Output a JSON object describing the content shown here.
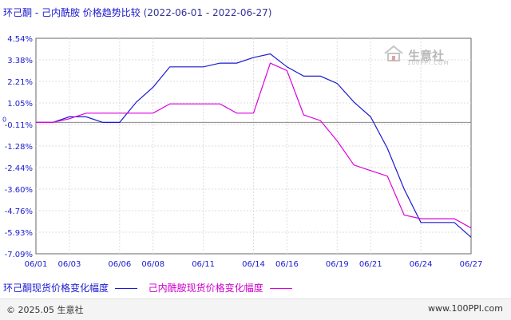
{
  "title": {
    "main": "环己酮 - 己内酰胺 价格趋势比较",
    "date_range": "(2022-06-01 - 2022-06-27)"
  },
  "watermark": {
    "brand": "生意社",
    "sub": "100PPI.COM"
  },
  "footer": {
    "copyright": "© 2025.05 生意社",
    "url": "www.100PPI.com"
  },
  "colors": {
    "series1": "#1a1ad0",
    "series2": "#dd00dd",
    "zero_line": "#888888",
    "frame": "#666666"
  },
  "chart_data": {
    "type": "line",
    "title": "环己酮 - 己内酰胺 价格趋势比较 (2022-06-01 - 2022-06-27)",
    "x": [
      "06/01",
      "06/02",
      "06/03",
      "06/04",
      "06/05",
      "06/06",
      "06/07",
      "06/08",
      "06/09",
      "06/10",
      "06/11",
      "06/12",
      "06/13",
      "06/14",
      "06/15",
      "06/16",
      "06/17",
      "06/18",
      "06/19",
      "06/20",
      "06/21",
      "06/22",
      "06/23",
      "06/24",
      "06/25",
      "06/26",
      "06/27"
    ],
    "x_tick_labels": [
      "06/01",
      "06/03",
      "06/06",
      "06/08",
      "06/11",
      "06/14",
      "06/16",
      "06/19",
      "06/21",
      "06/24",
      "06/27"
    ],
    "y_tick_labels": [
      "4.54%",
      "3.38%",
      "2.21%",
      "1.05%",
      "-0.11%",
      "-1.28%",
      "-2.44%",
      "-3.60%",
      "-4.76%",
      "-5.93%",
      "-7.09%"
    ],
    "ylim": [
      -7.09,
      4.54
    ],
    "zero_label": "0",
    "grid": true,
    "series": [
      {
        "name": "环己酮现货价格变化幅度",
        "values": [
          0,
          0,
          0.3,
          0.3,
          0,
          0,
          1.1,
          1.9,
          3.0,
          3.0,
          3.0,
          3.2,
          3.2,
          3.5,
          3.7,
          3.0,
          2.5,
          2.5,
          2.1,
          1.1,
          0.3,
          -1.4,
          -3.6,
          -5.4,
          -5.4,
          -5.4,
          -6.2
        ]
      },
      {
        "name": "己内酰胺现货价格变化幅度",
        "values": [
          0,
          0,
          0.2,
          0.5,
          0.5,
          0.5,
          0.5,
          0.5,
          1.0,
          1.0,
          1.0,
          1.0,
          0.5,
          0.5,
          3.2,
          2.8,
          0.4,
          0.1,
          -1.0,
          -2.3,
          -2.6,
          -2.9,
          -5.0,
          -5.2,
          -5.2,
          -5.2,
          -5.7
        ]
      }
    ]
  }
}
